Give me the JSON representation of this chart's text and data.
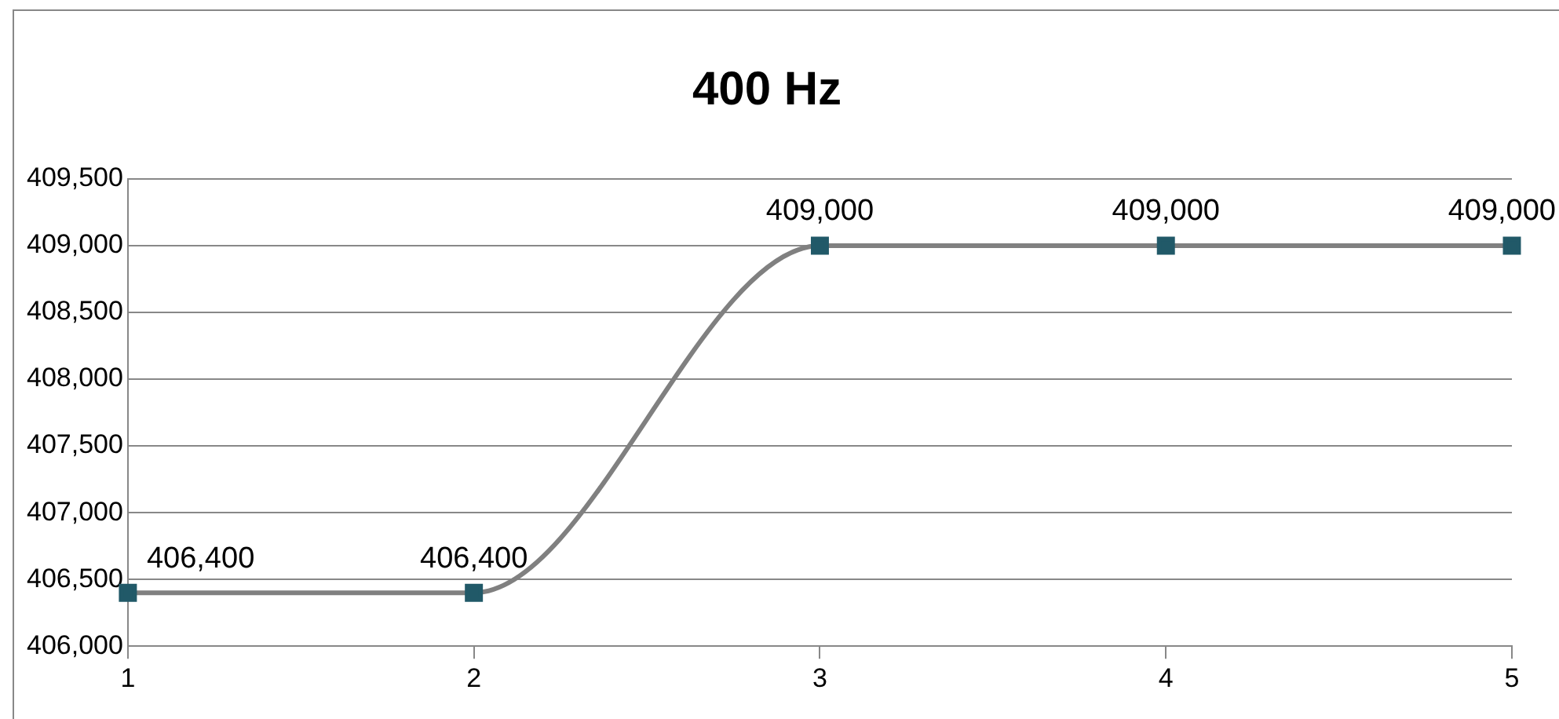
{
  "chart_data": {
    "type": "line",
    "title": "400 Hz",
    "x": [
      1,
      2,
      3,
      4,
      5
    ],
    "series": [
      {
        "color": "#808080",
        "values": [
          406400,
          406400,
          409000,
          409000,
          409000
        ],
        "colors": [
          "#215968",
          "#215968",
          "#215968",
          "#215968",
          "#215968"
        ],
        "value_labels": [
          "406,400",
          "406,400",
          "409,000",
          "409,000",
          "409,000"
        ]
      }
    ],
    "marker": "square",
    "xlim": [
      1,
      5
    ],
    "xticks": [
      1,
      2,
      3,
      4,
      5
    ],
    "ylim": [
      406000,
      409500
    ],
    "yticks": [
      {
        "value": 406000,
        "label": "406,000"
      },
      {
        "value": 406500,
        "label": "406,500"
      },
      {
        "value": 407000,
        "label": "407,000"
      },
      {
        "value": 407500,
        "label": "407,500"
      },
      {
        "value": 408000,
        "label": "408,000"
      },
      {
        "value": 408500,
        "label": "408,500"
      },
      {
        "value": 409000,
        "label": "409,000"
      },
      {
        "value": 409500,
        "label": "409,500"
      }
    ],
    "grid": "y",
    "legend": false
  }
}
